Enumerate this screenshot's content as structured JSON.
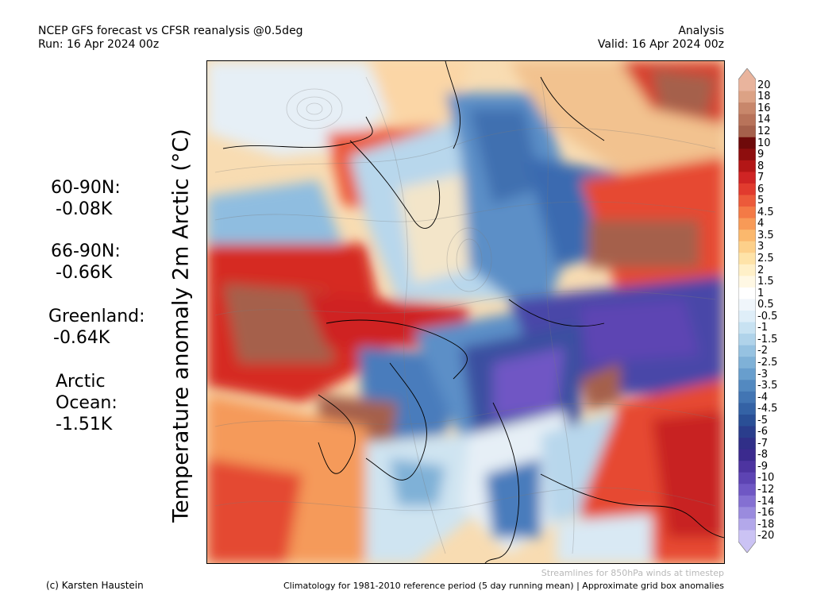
{
  "header": {
    "line1": "NCEP GFS forecast vs CFSR reanalysis @0.5deg",
    "line2": "Run: 16 Apr 2024 00z",
    "right1": "Analysis",
    "right2": "Valid: 16 Apr 2024 00z"
  },
  "y_label": "Temperature anomaly 2m Arctic (°C)",
  "stats": [
    {
      "label": "60-90N:",
      "value": "-0.08K"
    },
    {
      "label": "66-90N:",
      "value": "-0.66K"
    },
    {
      "label": "Greenland:",
      "value": "-0.64K"
    },
    {
      "label": "Arctic",
      "label2": "Ocean:",
      "value": "-1.51K"
    }
  ],
  "colorbar": {
    "labels": [
      "20",
      "18",
      "16",
      "14",
      "12",
      "10",
      "9",
      "8",
      "7",
      "6",
      "5",
      "4.5",
      "4",
      "3.5",
      "3",
      "2.5",
      "2",
      "1.5",
      "1",
      "0.5",
      "-0.5",
      "-1",
      "-1.5",
      "-2",
      "-2.5",
      "-3",
      "-3.5",
      "-4",
      "-4.5",
      "-5",
      "-6",
      "-7",
      "-8",
      "-9",
      "-10",
      "-12",
      "-14",
      "-16",
      "-18",
      "-20"
    ],
    "colors": [
      "#e9b49d",
      "#dca285",
      "#c8876b",
      "#b8735a",
      "#a5604b",
      "#6e0a0a",
      "#8e0e0e",
      "#b31616",
      "#cf2424",
      "#e13b2e",
      "#ec5a3a",
      "#f47a46",
      "#f89a57",
      "#fbb86d",
      "#fdd08a",
      "#fee3a8",
      "#fff0c8",
      "#fff8e4",
      "#ffffff",
      "#f0f6fb",
      "#dfeef8",
      "#c8e2f2",
      "#b0d3ea",
      "#96c2e1",
      "#7fb1d7",
      "#689ecd",
      "#5389c0",
      "#4275b3",
      "#3462a5",
      "#2a4f96",
      "#2a3d8c",
      "#302f88",
      "#3b2a8e",
      "#4d34a0",
      "#5d44b3",
      "#6f57c4",
      "#8470d2",
      "#9a8bde",
      "#b3a8ea",
      "#cbc3f4"
    ]
  },
  "footer": {
    "author": "(c) Karsten Haustein",
    "streamlines": "Streamlines for 850hPa winds at timestep",
    "climatology": "Climatology for 1981-2010 reference period (5 day running mean) | Approximate grid box anomalies"
  }
}
